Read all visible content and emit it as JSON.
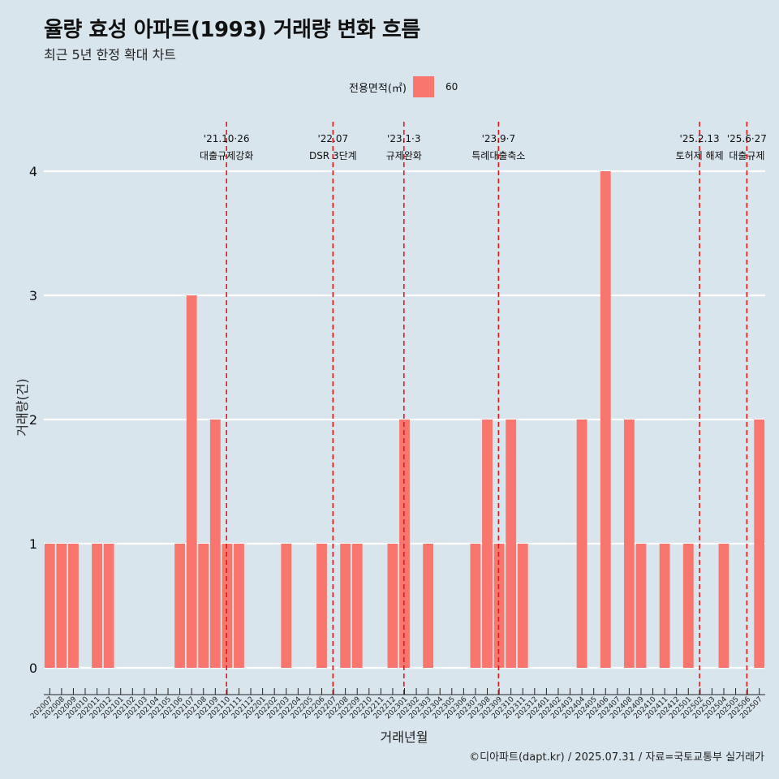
{
  "title": "율량 효성 아파트(1993) 거래량 변화 흐름",
  "subtitle": "최근 5년 한정 확대 차트",
  "legend": {
    "title": "전용면적(㎡)",
    "key": "60"
  },
  "caption": "©디아파트(dapt.kr) / 2025.07.31 / 자료=국토교통부 실거래가",
  "colors": {
    "bar": "#f8766d",
    "event_line": "#e8161b",
    "background": "#d9e5ec",
    "grid": "#ffffff"
  },
  "chart_data": {
    "type": "bar",
    "xlabel": "거래년월",
    "ylabel": "거래량(건)",
    "ylim": [
      0,
      4
    ],
    "yticks": [
      0,
      1,
      2,
      3,
      4
    ],
    "grid": "horizontal",
    "categories": [
      "202007",
      "202008",
      "202009",
      "202010",
      "202011",
      "202012",
      "202101",
      "202102",
      "202103",
      "202104",
      "202105",
      "202106",
      "202107",
      "202108",
      "202109",
      "202110",
      "202111",
      "202112",
      "202201",
      "202202",
      "202203",
      "202204",
      "202205",
      "202206",
      "202207",
      "202208",
      "202209",
      "202210",
      "202211",
      "202212",
      "202301",
      "202302",
      "202303",
      "202304",
      "202305",
      "202306",
      "202307",
      "202308",
      "202309",
      "202310",
      "202311",
      "202312",
      "202401",
      "202402",
      "202403",
      "202404",
      "202405",
      "202406",
      "202407",
      "202408",
      "202409",
      "202410",
      "202411",
      "202412",
      "202501",
      "202502",
      "202503",
      "202504",
      "202505",
      "202506",
      "202507"
    ],
    "series": [
      {
        "name": "60",
        "values": [
          1,
          1,
          1,
          0,
          1,
          1,
          0,
          0,
          0,
          0,
          0,
          1,
          3,
          1,
          2,
          1,
          1,
          0,
          0,
          0,
          1,
          0,
          0,
          1,
          0,
          1,
          1,
          0,
          0,
          1,
          2,
          0,
          1,
          0,
          0,
          0,
          1,
          2,
          1,
          2,
          1,
          0,
          0,
          0,
          0,
          2,
          0,
          4,
          0,
          2,
          1,
          0,
          1,
          0,
          1,
          0,
          0,
          1,
          0,
          0,
          2
        ]
      }
    ],
    "annotations": [
      {
        "x": "202110",
        "date": "'21.10·26",
        "label": "대출규제강화"
      },
      {
        "x": "202207",
        "date": "'22.07",
        "label": "DSR 3단계"
      },
      {
        "x": "202301",
        "date": "'23.1·3",
        "label": "규제완화"
      },
      {
        "x": "202309",
        "date": "'23.9·7",
        "label": "특례대출축소"
      },
      {
        "x": "202502",
        "date": "'25.2.13",
        "label": "토허제 해제"
      },
      {
        "x": "202506",
        "date": "'25.6·27",
        "label": "대출규제"
      }
    ]
  }
}
